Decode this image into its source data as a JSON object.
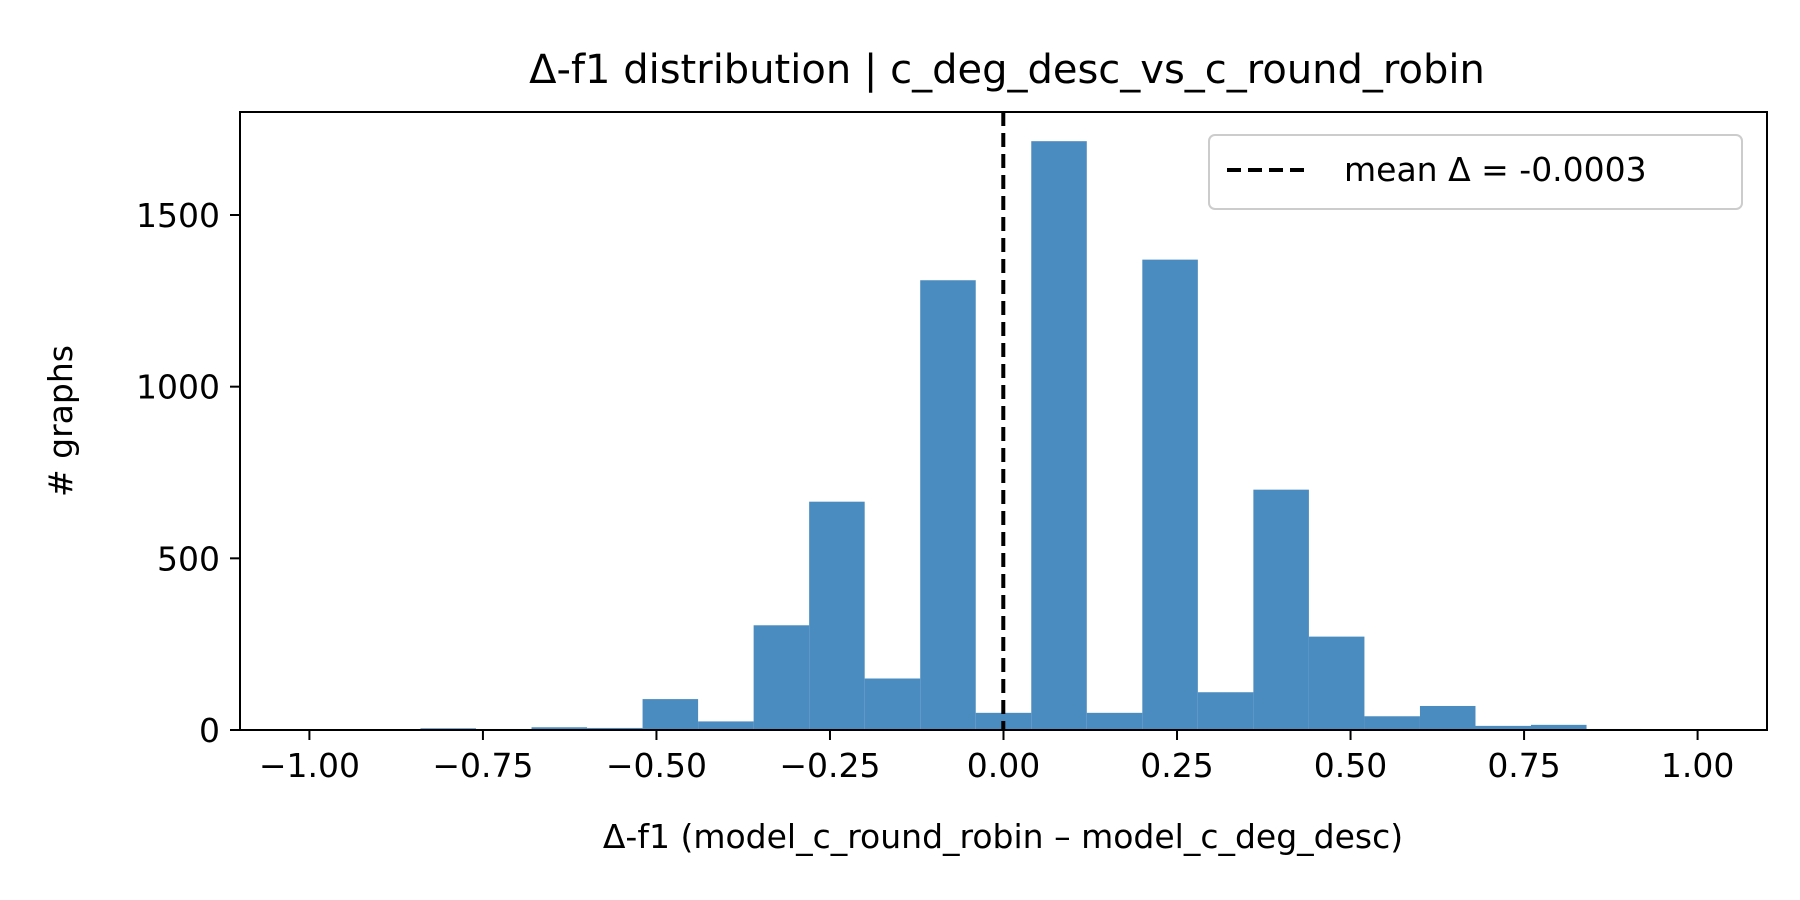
{
  "chart_data": {
    "type": "bar",
    "title": "Δ-f1 distribution  |  c_deg_desc_vs_c_round_robin",
    "xlabel": "Δ-f1  (model_c_round_robin – model_c_deg_desc)",
    "ylabel": "# graphs",
    "xlim": [
      -1.1,
      1.1
    ],
    "ylim": [
      0,
      1800
    ],
    "x_ticks": [
      -1.0,
      -0.75,
      -0.5,
      -0.25,
      0.0,
      0.25,
      0.5,
      0.75,
      1.0
    ],
    "x_tick_labels": [
      "−1.00",
      "−0.75",
      "−0.50",
      "−0.25",
      "0.00",
      "0.25",
      "0.50",
      "0.75",
      "1.00"
    ],
    "y_ticks": [
      0,
      500,
      1000,
      1500
    ],
    "y_tick_labels": [
      "0",
      "500",
      "1000",
      "1500"
    ],
    "grid": false,
    "bar_color": "#4a8bc0",
    "bins": {
      "start": -1.0,
      "width": 0.08,
      "counts": [
        2,
        1,
        5,
        3,
        8,
        6,
        90,
        25,
        305,
        665,
        150,
        1310,
        50,
        1715,
        50,
        1370,
        110,
        700,
        272,
        40,
        70,
        12,
        15,
        3,
        2
      ]
    },
    "mean_line": {
      "value": -0.0003,
      "color": "#000000",
      "style": "dashed"
    },
    "legend": {
      "placement": "upper right",
      "entries": [
        {
          "label": "mean Δ = -0.0003",
          "style": "dashed",
          "color": "#000000"
        }
      ]
    }
  }
}
